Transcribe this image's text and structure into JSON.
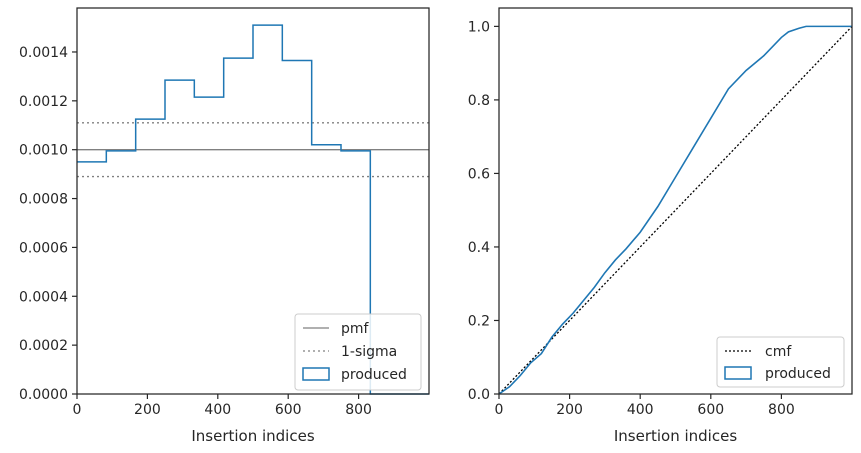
{
  "chart_data": [
    {
      "type": "histogram-step",
      "xlabel": "Insertion indices",
      "ylabel": "",
      "xlim": [
        0,
        1000
      ],
      "ylim": [
        0,
        0.00158
      ],
      "xticks": [
        0,
        200,
        400,
        600,
        800
      ],
      "xtick_labels": [
        "0",
        "200",
        "400",
        "600",
        "800"
      ],
      "yticks": [
        0,
        0.0002,
        0.0004,
        0.0006,
        0.0008,
        0.001,
        0.0012,
        0.0014
      ],
      "ytick_labels": [
        "0.0000",
        "0.0002",
        "0.0004",
        "0.0006",
        "0.0008",
        "0.0010",
        "0.0012",
        "0.0014"
      ],
      "pmf": 0.001,
      "sigma_upper": 0.00111,
      "sigma_lower": 0.00089,
      "bin_edges": [
        0,
        83.3,
        166.7,
        250,
        333.3,
        416.7,
        500,
        583.3,
        666.7,
        750,
        833.3,
        916.7,
        1000
      ],
      "values": [
        0.00095,
        0.000995,
        0.001125,
        0.001285,
        0.001215,
        0.001375,
        0.00151,
        0.001365,
        0.00102,
        0.000995,
        0,
        0
      ],
      "colors": {
        "series": "#1f77b4",
        "reference": "#808080"
      },
      "legend": {
        "location": "lower right",
        "entries": [
          {
            "label": "pmf",
            "style": "solid"
          },
          {
            "label": "1-sigma",
            "style": "dotted"
          },
          {
            "label": "produced",
            "style": "box"
          }
        ]
      },
      "grid": false
    },
    {
      "type": "line",
      "xlabel": "Insertion indices",
      "ylabel": "",
      "xlim": [
        0,
        1000
      ],
      "ylim": [
        0,
        1.05
      ],
      "xticks": [
        0,
        200,
        400,
        600,
        800
      ],
      "xtick_labels": [
        "0",
        "200",
        "400",
        "600",
        "800"
      ],
      "yticks": [
        0,
        0.2,
        0.4,
        0.6,
        0.8,
        1.0
      ],
      "ytick_labels": [
        "0.0",
        "0.2",
        "0.4",
        "0.6",
        "0.8",
        "1.0"
      ],
      "cmf": {
        "x": [
          0,
          1000
        ],
        "y": [
          0,
          1
        ]
      },
      "produced": {
        "x": [
          0,
          30,
          60,
          90,
          120,
          150,
          180,
          210,
          240,
          270,
          300,
          330,
          360,
          400,
          450,
          500,
          550,
          600,
          650,
          700,
          750,
          800,
          820,
          850,
          870,
          900,
          1000
        ],
        "y": [
          0,
          0.02,
          0.05,
          0.085,
          0.11,
          0.155,
          0.19,
          0.22,
          0.255,
          0.29,
          0.33,
          0.365,
          0.395,
          0.44,
          0.51,
          0.59,
          0.67,
          0.75,
          0.83,
          0.88,
          0.92,
          0.97,
          0.985,
          0.995,
          1.0,
          1.0,
          1.0
        ]
      },
      "colors": {
        "series": "#1f77b4",
        "reference": "#000000"
      },
      "legend": {
        "location": "lower right",
        "entries": [
          {
            "label": "cmf",
            "style": "dotted"
          },
          {
            "label": "produced",
            "style": "box"
          }
        ]
      },
      "grid": false
    }
  ]
}
